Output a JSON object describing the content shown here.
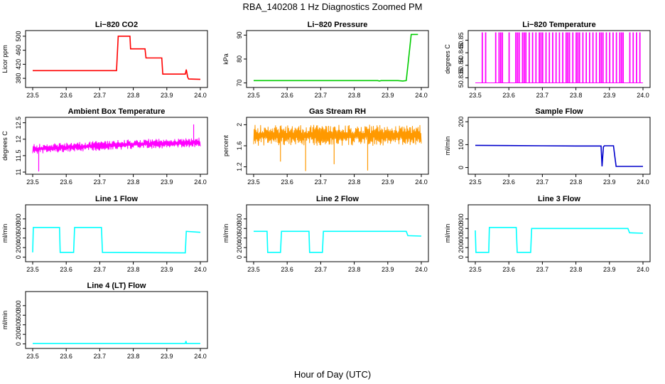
{
  "figure": {
    "title": "RBA_140208  1 Hz Diagnostics Zoomed PM",
    "xlabel": "Hour of Day (UTC)"
  },
  "chart_data": [
    {
      "type": "line",
      "title": "Li−820 CO2",
      "ylabel": "Licor ppm",
      "color": "#ff0000",
      "xlim": [
        23.5,
        24.0
      ],
      "ylim": [
        360,
        510
      ],
      "xticks": [
        "23.5",
        "23.6",
        "23.7",
        "23.8",
        "23.9",
        "24.0"
      ],
      "yticks": [
        380,
        420,
        460,
        500
      ],
      "series": [
        {
          "name": "CO2",
          "x": [
            23.5,
            23.75,
            23.755,
            23.79,
            23.792,
            23.835,
            23.838,
            23.885,
            23.888,
            23.955,
            23.958,
            23.962,
            23.965,
            24.0
          ],
          "y": [
            402,
            402,
            500,
            500,
            464,
            464,
            438,
            438,
            392,
            392,
            405,
            384,
            378,
            377
          ]
        }
      ]
    },
    {
      "type": "line",
      "title": "Li−820 Pressure",
      "ylabel": "kPa",
      "color": "#00cc00",
      "xlim": [
        23.5,
        24.0
      ],
      "ylim": [
        69,
        91
      ],
      "xticks": [
        "23.5",
        "23.6",
        "23.7",
        "23.8",
        "23.9",
        "24.0"
      ],
      "yticks": [
        70,
        80,
        90
      ],
      "series": [
        {
          "name": "Pressure",
          "x": [
            23.5,
            23.87,
            23.875,
            23.88,
            23.93,
            23.945,
            23.955,
            23.962,
            23.97,
            23.99
          ],
          "y": [
            71,
            71,
            70.8,
            71,
            71,
            70.8,
            71,
            80,
            90.3,
            90.3
          ]
        }
      ]
    },
    {
      "type": "line",
      "title": "Li−820 Temperature",
      "ylabel": "degrees C",
      "color": "#ff00ff",
      "xlim": [
        23.5,
        24.0
      ],
      "ylim": [
        50.832,
        50.853
      ],
      "xticks": [
        "23.5",
        "23.6",
        "23.7",
        "23.8",
        "23.9",
        "24.0"
      ],
      "yticks": [
        50.835,
        50.84,
        50.845,
        50.85
      ],
      "base": 50.833,
      "spike": 50.853,
      "spike_x": [
        23.52,
        23.53,
        23.56,
        23.57,
        23.575,
        23.58,
        23.6,
        23.62,
        23.625,
        23.63,
        23.64,
        23.645,
        23.65,
        23.66,
        23.67,
        23.68,
        23.69,
        23.695,
        23.7,
        23.71,
        23.72,
        23.73,
        23.74,
        23.75,
        23.76,
        23.77,
        23.775,
        23.78,
        23.79,
        23.8,
        23.805,
        23.81,
        23.82,
        23.83,
        23.84,
        23.85,
        23.86,
        23.87,
        23.875,
        23.88,
        23.89,
        23.9,
        23.91,
        23.92,
        23.93,
        23.935,
        23.94,
        23.96,
        23.97,
        23.98,
        23.99
      ]
    },
    {
      "type": "line",
      "title": "Ambient Box Temperature",
      "ylabel": "degrees C",
      "color": "#ff00ff",
      "xlim": [
        23.5,
        24.0
      ],
      "ylim": [
        11.0,
        12.6
      ],
      "xticks": [
        "23.5",
        "23.6",
        "23.7",
        "23.8",
        "23.9",
        "24.0"
      ],
      "yticks": [
        11.0,
        11.5,
        12.0,
        12.5
      ],
      "band": {
        "x": [
          23.5,
          23.6,
          23.7,
          23.8,
          23.9,
          24.0
        ],
        "lower": [
          11.55,
          11.6,
          11.65,
          11.7,
          11.72,
          11.75
        ],
        "upper": [
          11.85,
          11.9,
          11.95,
          12.0,
          12.02,
          12.05
        ]
      },
      "outliers": [
        {
          "x": 23.518,
          "y": 11.02
        },
        {
          "x": 23.98,
          "y": 12.45
        }
      ]
    },
    {
      "type": "line",
      "title": "Gas Stream RH",
      "ylabel": "percent",
      "color": "#ff9900",
      "xlim": [
        23.5,
        24.0
      ],
      "ylim": [
        1.1,
        2.1
      ],
      "xticks": [
        "23.5",
        "23.6",
        "23.7",
        "23.8",
        "23.9",
        "24.0"
      ],
      "yticks": [
        1.2,
        1.6,
        2.0
      ],
      "band": {
        "x": [
          23.5,
          24.0
        ],
        "lower": [
          1.6,
          1.6
        ],
        "upper": [
          2.0,
          2.0
        ]
      },
      "outliers": [
        {
          "x": 23.655,
          "y": 1.12
        },
        {
          "x": 23.84,
          "y": 1.13
        },
        {
          "x": 23.58,
          "y": 1.3
        },
        {
          "x": 23.74,
          "y": 1.25
        }
      ]
    },
    {
      "type": "line",
      "title": "Sample Flow",
      "ylabel": "ml/min",
      "color": "#0000cc",
      "xlim": [
        23.5,
        24.0
      ],
      "ylim": [
        -20,
        210
      ],
      "xticks": [
        "23.5",
        "23.6",
        "23.7",
        "23.8",
        "23.9",
        "24.0"
      ],
      "yticks": [
        0,
        100,
        200
      ],
      "series": [
        {
          "name": "Flow",
          "x": [
            23.5,
            23.6,
            23.7,
            23.8,
            23.875,
            23.878,
            23.882,
            23.885,
            23.912,
            23.915,
            23.92,
            24.0
          ],
          "y": [
            97,
            96,
            95,
            94,
            94,
            5,
            90,
            95,
            95,
            60,
            5,
            5
          ]
        }
      ]
    },
    {
      "type": "line",
      "title": "Line 1 Flow",
      "ylabel": "ml/min",
      "color": "#00ffff",
      "xlim": [
        23.5,
        24.0
      ],
      "ylim": [
        -50,
        1050
      ],
      "xticks": [
        "23.5",
        "23.6",
        "23.7",
        "23.8",
        "23.9",
        "24.0"
      ],
      "yticks": [
        0,
        200,
        400,
        600,
        800
      ],
      "series": [
        {
          "name": "Line1",
          "x": [
            23.5,
            23.502,
            23.58,
            23.582,
            23.622,
            23.625,
            23.705,
            23.708,
            23.955,
            23.958,
            24.0
          ],
          "y": [
            100,
            620,
            620,
            100,
            100,
            620,
            620,
            100,
            90,
            540,
            520
          ]
        }
      ]
    },
    {
      "type": "line",
      "title": "Line 2 Flow",
      "ylabel": "ml/min",
      "color": "#00ffff",
      "xlim": [
        23.5,
        24.0
      ],
      "ylim": [
        -50,
        1050
      ],
      "xticks": [
        "23.5",
        "23.6",
        "23.7",
        "23.8",
        "23.9",
        "24.0"
      ],
      "yticks": [
        0,
        200,
        400,
        600,
        800
      ],
      "series": [
        {
          "name": "Line2",
          "x": [
            23.5,
            23.54,
            23.542,
            23.58,
            23.583,
            23.665,
            23.667,
            23.705,
            23.708,
            23.955,
            23.96,
            24.0
          ],
          "y": [
            540,
            540,
            100,
            100,
            540,
            540,
            100,
            100,
            540,
            540,
            450,
            440
          ]
        }
      ]
    },
    {
      "type": "line",
      "title": "Line 3 Flow",
      "ylabel": "ml/min",
      "color": "#00ffff",
      "xlim": [
        23.5,
        24.0
      ],
      "ylim": [
        -50,
        1050
      ],
      "xticks": [
        "23.5",
        "23.6",
        "23.7",
        "23.8",
        "23.9",
        "24.0"
      ],
      "yticks": [
        0,
        200,
        400,
        600,
        800
      ],
      "series": [
        {
          "name": "Line3",
          "x": [
            23.5,
            23.502,
            23.54,
            23.542,
            23.622,
            23.625,
            23.665,
            23.668,
            23.955,
            23.96,
            24.0
          ],
          "y": [
            560,
            100,
            100,
            620,
            620,
            100,
            100,
            600,
            600,
            510,
            500
          ]
        }
      ]
    },
    {
      "type": "line",
      "title": "Line 4 (LT) Flow",
      "ylabel": "ml/min",
      "color": "#00ffff",
      "xlim": [
        23.5,
        24.0
      ],
      "ylim": [
        -50,
        1050
      ],
      "xticks": [
        "23.5",
        "23.6",
        "23.7",
        "23.8",
        "23.9",
        "24.0"
      ],
      "yticks": [
        0,
        200,
        400,
        600,
        800
      ],
      "series": [
        {
          "name": "Line4",
          "x": [
            23.5,
            23.955,
            23.957,
            23.959,
            23.962,
            24.0
          ],
          "y": [
            8,
            8,
            60,
            8,
            8,
            8
          ]
        }
      ]
    }
  ]
}
